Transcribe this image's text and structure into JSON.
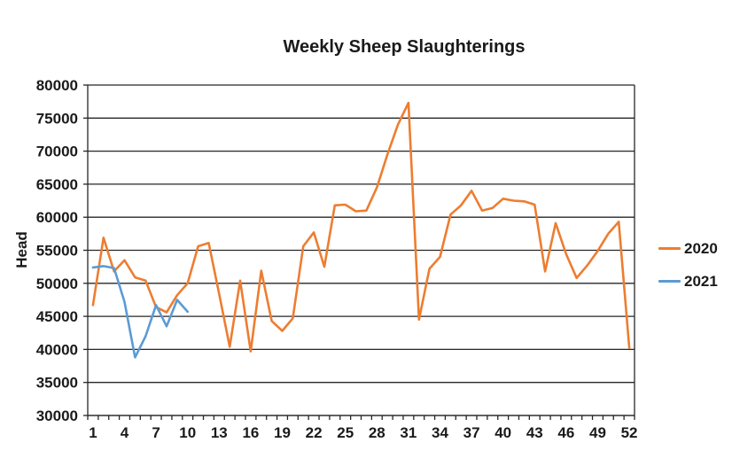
{
  "title": "Weekly Sheep Slaughterings",
  "y_axis_title": "Head",
  "legend": {
    "items": [
      {
        "label": "2020",
        "color": "#ED7D31"
      },
      {
        "label": "2021",
        "color": "#5B9BD5"
      }
    ]
  },
  "chart_data": {
    "type": "line",
    "title": "Weekly Sheep Slaughterings",
    "xlabel": "",
    "ylabel": "Head",
    "ylim": [
      30000,
      80000
    ],
    "ytick_step": 5000,
    "ytick_labels": [
      "30000",
      "35000",
      "40000",
      "45000",
      "50000",
      "55000",
      "60000",
      "65000",
      "70000",
      "75000",
      "80000"
    ],
    "x_weeks": 52,
    "xtick_labels": [
      "1",
      "4",
      "7",
      "10",
      "13",
      "16",
      "19",
      "22",
      "25",
      "28",
      "31",
      "34",
      "37",
      "40",
      "43",
      "46",
      "49",
      "52"
    ],
    "xtick_label_weeks": [
      1,
      4,
      7,
      10,
      13,
      16,
      19,
      22,
      25,
      28,
      31,
      34,
      37,
      40,
      43,
      46,
      49,
      52
    ],
    "grid": "horizontal",
    "legend_position": "right",
    "series": [
      {
        "name": "2020",
        "color": "#ED7D31",
        "start_week": 1,
        "values": [
          46700,
          56900,
          51800,
          53500,
          50900,
          50400,
          46400,
          45600,
          48200,
          50000,
          55600,
          56100,
          48400,
          40400,
          50400,
          39700,
          51900,
          44300,
          42800,
          44700,
          55600,
          57700,
          52500,
          61800,
          61900,
          60900,
          61000,
          64500,
          69500,
          74000,
          77300,
          44500,
          52200,
          54000,
          60400,
          61800,
          64000,
          61000,
          61400,
          62800,
          62500,
          62400,
          61900,
          51800,
          59100,
          54400,
          50800,
          52700,
          54900,
          57500,
          59300,
          40200
        ]
      },
      {
        "name": "2021",
        "color": "#5B9BD5",
        "start_week": 1,
        "values": [
          52400,
          52600,
          52300,
          47200,
          38800,
          42000,
          46700,
          43500,
          47500,
          45700
        ]
      }
    ],
    "axis_color": "#262626",
    "gridline_color": "#262626"
  }
}
